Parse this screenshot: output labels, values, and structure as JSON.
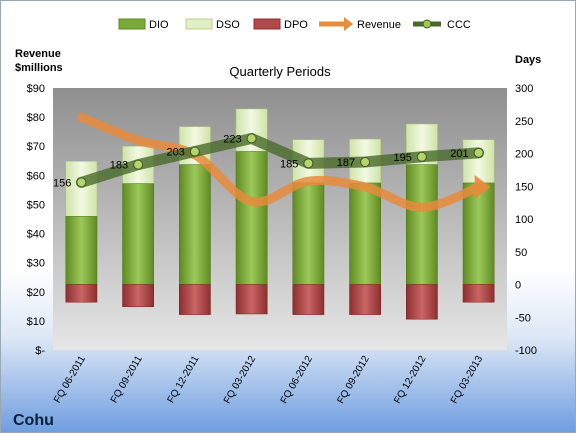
{
  "chart_data": {
    "type": "bar",
    "title": "Quarterly Periods",
    "company": "Cohu",
    "ylabel_left": "Revenue $millions",
    "ylabel_right": "Days",
    "categories": [
      "FQ 06-2011",
      "FQ 09-2011",
      "FQ 12-2011",
      "FQ 03-2012",
      "FQ 06-2012",
      "FQ 09-2012",
      "FQ 12-2012",
      "FQ 03-2013"
    ],
    "left_axis": {
      "range": [
        0,
        90
      ],
      "ticks": [
        "$-",
        "$10",
        "$20",
        "$30",
        "$40",
        "$50",
        "$60",
        "$70",
        "$80",
        "$90"
      ]
    },
    "right_axis": {
      "range": [
        -100,
        300
      ],
      "ticks": [
        "-100",
        "-50",
        "0",
        "50",
        "100",
        "150",
        "200",
        "250",
        "300"
      ]
    },
    "series": [
      {
        "name": "DIO",
        "axis": "right",
        "kind": "bar",
        "color": "#7aa83a",
        "values": [
          104,
          154,
          183,
          203,
          155,
          155,
          183,
          155
        ]
      },
      {
        "name": "DSO",
        "axis": "right",
        "kind": "bar",
        "color": "#e2efc4",
        "values": [
          84,
          57,
          58,
          65,
          66,
          67,
          62,
          66
        ]
      },
      {
        "name": "DPO",
        "axis": "right",
        "kind": "bar",
        "color": "#b04a4a",
        "values": [
          -27,
          -34,
          -46,
          -45,
          -46,
          -46,
          -53,
          -27
        ]
      },
      {
        "name": "Revenue",
        "axis": "left",
        "kind": "line",
        "color": "#e88b3b",
        "values": [
          80,
          72,
          67,
          51,
          58,
          56,
          49,
          56
        ]
      },
      {
        "name": "CCC",
        "axis": "right",
        "kind": "line",
        "color": "#4a6a2a",
        "values": [
          156,
          183,
          203,
          223,
          185,
          187,
          195,
          201
        ]
      }
    ],
    "data_labels": [
      "156",
      "183",
      "203",
      "223",
      "185",
      "187",
      "195",
      "201"
    ],
    "legend_position": "top",
    "grid": false
  }
}
